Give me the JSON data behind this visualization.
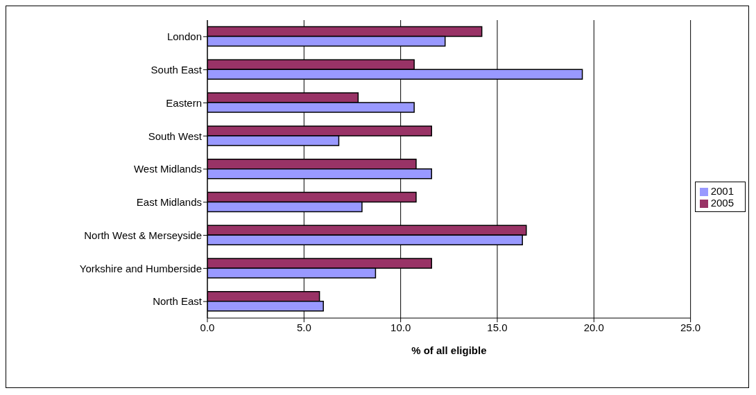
{
  "chart_data": {
    "type": "bar",
    "orientation": "horizontal",
    "xlabel": "% of all eligible",
    "categories": [
      "London",
      "South East",
      "Eastern",
      "South West",
      "West Midlands",
      "East Midlands",
      "North West & Merseyside",
      "Yorkshire and Humberside",
      "North East"
    ],
    "series": [
      {
        "name": "2005",
        "color": "#993366",
        "values": [
          14.2,
          10.7,
          7.8,
          11.6,
          10.8,
          10.8,
          16.5,
          11.6,
          5.8
        ]
      },
      {
        "name": "2001",
        "color": "#9999ff",
        "values": [
          12.3,
          19.4,
          10.7,
          6.8,
          11.6,
          8.0,
          16.3,
          8.7,
          6.0
        ]
      }
    ],
    "xlim": [
      0,
      25
    ],
    "xticks": [
      {
        "value": 0,
        "label": "0.0"
      },
      {
        "value": 5,
        "label": "5.0"
      },
      {
        "value": 10,
        "label": "10.0"
      },
      {
        "value": 15,
        "label": "15.0"
      },
      {
        "value": 20,
        "label": "20.0"
      },
      {
        "value": 25,
        "label": "25.0"
      }
    ],
    "grid": "x",
    "legend": "right"
  }
}
